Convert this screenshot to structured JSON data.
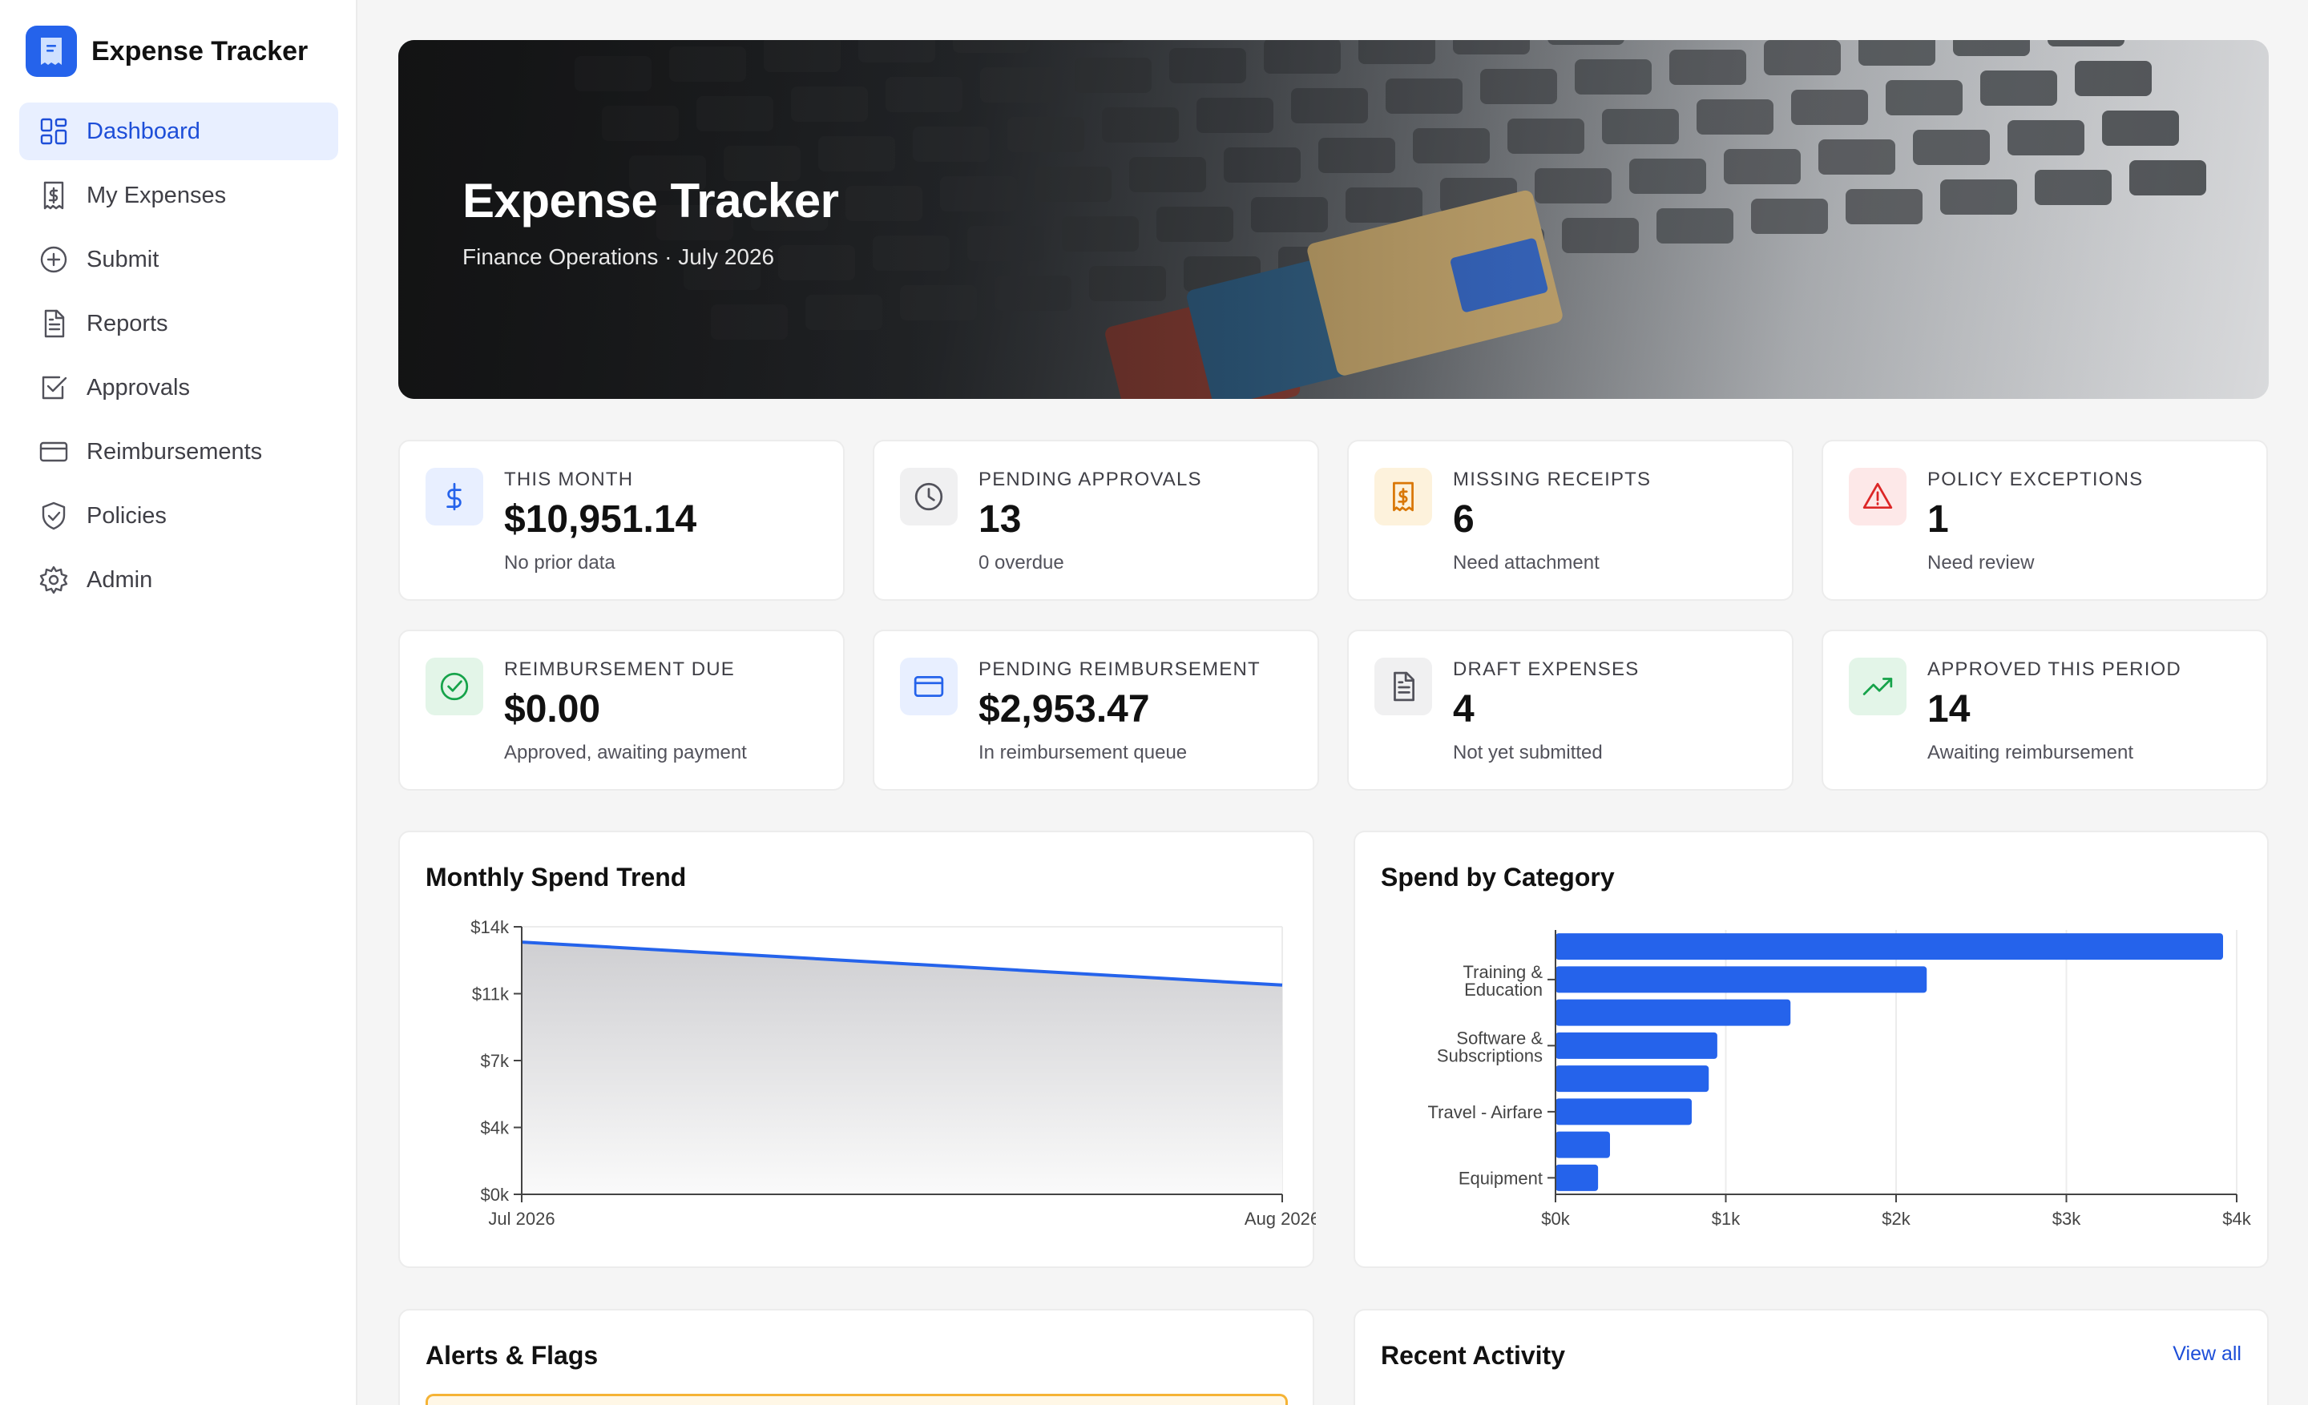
{
  "app": {
    "title": "Expense Tracker",
    "accent": "#2563eb"
  },
  "sidebar": {
    "items": [
      {
        "label": "Dashboard",
        "icon": "dashboard-icon",
        "active": true
      },
      {
        "label": "My Expenses",
        "icon": "receipt-dollar-icon"
      },
      {
        "label": "Submit",
        "icon": "plus-circle-icon"
      },
      {
        "label": "Reports",
        "icon": "document-icon"
      },
      {
        "label": "Approvals",
        "icon": "check-square-icon"
      },
      {
        "label": "Reimbursements",
        "icon": "credit-card-icon"
      },
      {
        "label": "Policies",
        "icon": "shield-check-icon"
      },
      {
        "label": "Admin",
        "icon": "gear-icon"
      }
    ]
  },
  "hero": {
    "title": "Expense Tracker",
    "subtitle": "Finance Operations · July 2026"
  },
  "cards": [
    {
      "label": "THIS MONTH",
      "value": "$10,951.14",
      "sub": "No prior data",
      "icon": "dollar-icon",
      "color": "#2563eb",
      "bg": "#e8efff"
    },
    {
      "label": "PENDING APPROVALS",
      "value": "13",
      "sub": "0 overdue",
      "icon": "clock-icon",
      "color": "#52525b",
      "bg": "#f0f0f1"
    },
    {
      "label": "MISSING RECEIPTS",
      "value": "6",
      "sub": "Need attachment",
      "icon": "receipt-dollar-icon",
      "color": "#d97706",
      "bg": "#fdf2dc"
    },
    {
      "label": "POLICY EXCEPTIONS",
      "value": "1",
      "sub": "Need review",
      "icon": "warning-icon",
      "color": "#dc2626",
      "bg": "#fde8e8"
    },
    {
      "label": "REIMBURSEMENT DUE",
      "value": "$0.00",
      "sub": "Approved, awaiting payment",
      "icon": "check-circle-icon",
      "color": "#16a34a",
      "bg": "#e3f5e8"
    },
    {
      "label": "PENDING REIMBURSEMENT",
      "value": "$2,953.47",
      "sub": "In reimbursement queue",
      "icon": "credit-card-icon",
      "color": "#2563eb",
      "bg": "#e8efff"
    },
    {
      "label": "DRAFT EXPENSES",
      "value": "4",
      "sub": "Not yet submitted",
      "icon": "document-icon",
      "color": "#52525b",
      "bg": "#f0f0f1"
    },
    {
      "label": "APPROVED THIS PERIOD",
      "value": "14",
      "sub": "Awaiting reimbursement",
      "icon": "trending-up-icon",
      "color": "#16a34a",
      "bg": "#e3f5e8"
    }
  ],
  "trend": {
    "title": "Monthly Spend Trend",
    "chart_data": {
      "type": "area",
      "x": [
        "Jul 2026",
        "Aug 2026"
      ],
      "values": [
        13200,
        10950
      ],
      "ylim": [
        0,
        14000
      ],
      "yticks": [
        {
          "v": 0,
          "label": "$0k"
        },
        {
          "v": 3500,
          "label": "$4k"
        },
        {
          "v": 7000,
          "label": "$7k"
        },
        {
          "v": 10500,
          "label": "$11k"
        },
        {
          "v": 14000,
          "label": "$14k"
        }
      ],
      "color": "#2563eb"
    }
  },
  "category": {
    "title": "Spend by Category",
    "chart_data": {
      "type": "bar",
      "orientation": "horizontal",
      "categories": [
        "",
        "Training & Education",
        "",
        "Software & Subscriptions",
        "",
        "Travel - Airfare",
        "",
        "Equipment"
      ],
      "values": [
        3920,
        2180,
        1380,
        950,
        900,
        800,
        320,
        250
      ],
      "xlim": [
        0,
        4000
      ],
      "xticks": [
        {
          "v": 0,
          "label": "$0k"
        },
        {
          "v": 1000,
          "label": "$1k"
        },
        {
          "v": 2000,
          "label": "$2k"
        },
        {
          "v": 3000,
          "label": "$3k"
        },
        {
          "v": 4000,
          "label": "$4k"
        }
      ],
      "color": "#2563eb"
    }
  },
  "alerts": {
    "title": "Alerts & Flags"
  },
  "activity": {
    "title": "Recent Activity",
    "view_all": "View all"
  }
}
